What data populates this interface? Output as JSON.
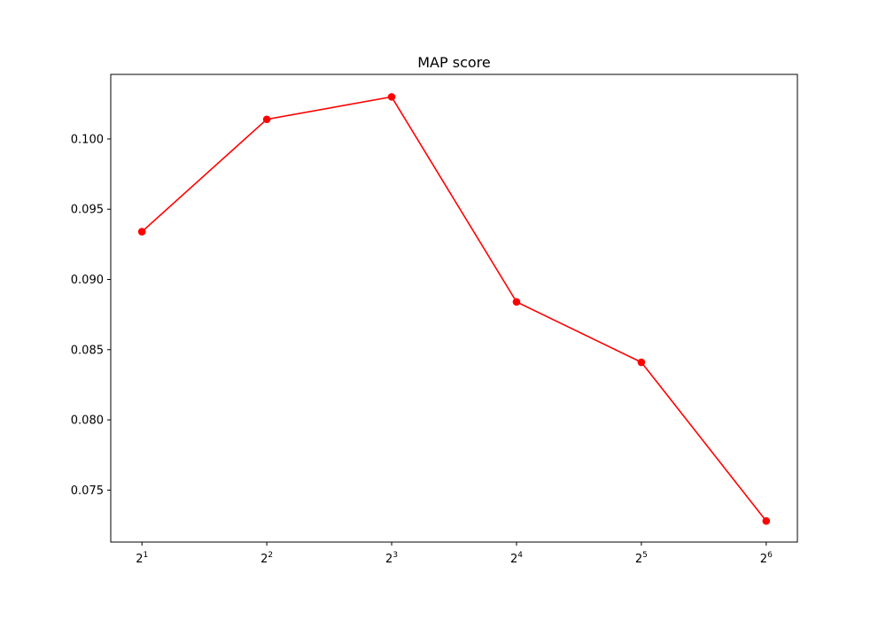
{
  "chart_data": {
    "type": "line",
    "title": "MAP score",
    "xlabel": "",
    "ylabel": "",
    "x": [
      2,
      4,
      8,
      16,
      32,
      64
    ],
    "x_tick_labels": [
      {
        "base": "2",
        "exp": "1"
      },
      {
        "base": "2",
        "exp": "2"
      },
      {
        "base": "2",
        "exp": "3"
      },
      {
        "base": "2",
        "exp": "4"
      },
      {
        "base": "2",
        "exp": "5"
      },
      {
        "base": "2",
        "exp": "6"
      }
    ],
    "x_scale": "log2",
    "series": [
      {
        "values": [
          0.0934,
          0.1014,
          0.103,
          0.0884,
          0.0841,
          0.0728
        ],
        "color": "#ff0000",
        "marker": "circle"
      }
    ],
    "y_ticks": [
      "0.075",
      "0.080",
      "0.085",
      "0.090",
      "0.095",
      "0.100"
    ],
    "ylim": [
      0.0713,
      0.1046
    ],
    "grid": false,
    "legend": "none"
  }
}
